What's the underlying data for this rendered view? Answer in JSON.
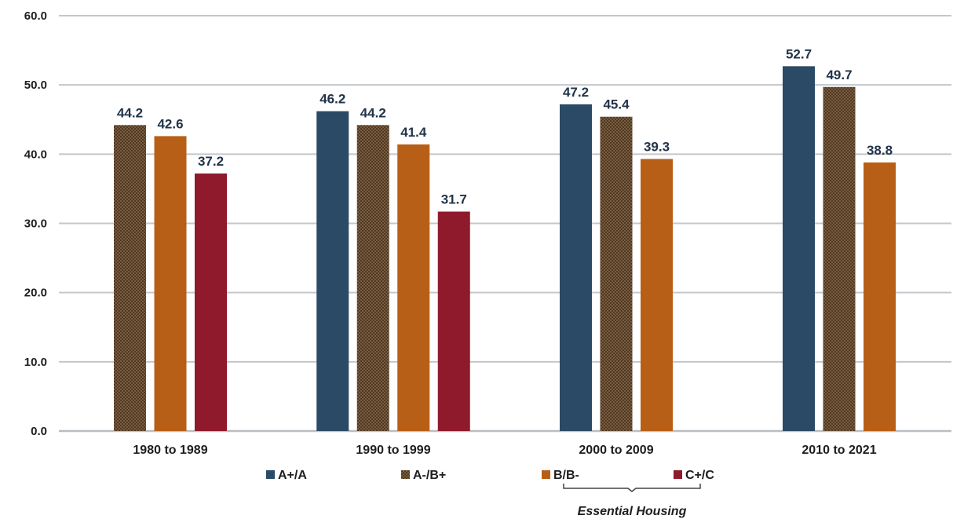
{
  "chart_data": {
    "type": "bar",
    "categories": [
      "1980 to 1989",
      "1990 to 1999",
      "2000 to 2009",
      "2010 to 2021"
    ],
    "series": [
      {
        "name": "A+/A",
        "color": "#2a4a66",
        "values": [
          null,
          46.2,
          47.2,
          52.7
        ]
      },
      {
        "name": "A-/B+",
        "color": "#7a5a3c",
        "pattern": "crosshatch",
        "values": [
          44.2,
          44.2,
          45.4,
          49.7
        ]
      },
      {
        "name": "B/B-",
        "color": "#b85f17",
        "values": [
          42.6,
          41.4,
          39.3,
          38.8
        ]
      },
      {
        "name": "C+/C",
        "color": "#8e1a2c",
        "values": [
          37.2,
          31.7,
          null,
          null
        ]
      }
    ],
    "ylim": [
      0,
      60
    ],
    "yticks": [
      "0.0",
      "10.0",
      "20.0",
      "30.0",
      "40.0",
      "50.0",
      "60.0"
    ],
    "grid": true,
    "legend_position": "bottom",
    "annotation": "Essential Housing",
    "annotation_spans": [
      "B/B-",
      "C+/C"
    ]
  }
}
